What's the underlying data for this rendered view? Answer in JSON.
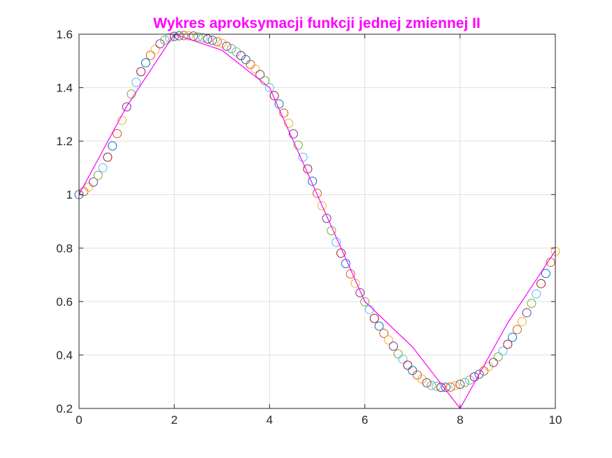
{
  "chart_data": {
    "type": "scatter",
    "title": "Wykres aproksymacji funkcji jednej zmiennej II",
    "title_color": "#ff00ff",
    "xlabel": "",
    "ylabel": "",
    "xlim": [
      0,
      10
    ],
    "ylim": [
      0.2,
      1.6
    ],
    "xticks": [
      "0",
      "2",
      "4",
      "6",
      "8",
      "10"
    ],
    "yticks": [
      "0.2",
      "0.4",
      "0.6",
      "0.8",
      "1",
      "1.2",
      "1.4",
      "1.6"
    ],
    "grid": true,
    "legend": "none",
    "marker_colors": [
      "#0072bd",
      "#d95319",
      "#edb120",
      "#7e2f8e",
      "#77ac30",
      "#4dbeee",
      "#a2142f"
    ],
    "series": [
      {
        "marker": "open-circle",
        "x": [
          0.0,
          0.1,
          0.2,
          0.3,
          0.4,
          0.5,
          0.6,
          0.7,
          0.8,
          0.9,
          1.0,
          1.1,
          1.2,
          1.3,
          1.4,
          1.5,
          1.6,
          1.7,
          1.8,
          1.9,
          2.0,
          2.1,
          2.2,
          2.3,
          2.4,
          2.5,
          2.6,
          2.7,
          2.8,
          2.9,
          3.0,
          3.1,
          3.2,
          3.3,
          3.4,
          3.5,
          3.6,
          3.7,
          3.8,
          3.9,
          4.0,
          4.1,
          4.2,
          4.3,
          4.4,
          4.5,
          4.6,
          4.7,
          4.8,
          4.9,
          5.0,
          5.1,
          5.2,
          5.3,
          5.4,
          5.5,
          5.6,
          5.7,
          5.8,
          5.9,
          6.0,
          6.1,
          6.2,
          6.3,
          6.4,
          6.5,
          6.6,
          6.7,
          6.8,
          6.9,
          7.0,
          7.1,
          7.2,
          7.3,
          7.4,
          7.5,
          7.6,
          7.7,
          7.8,
          7.9,
          8.0,
          8.1,
          8.2,
          8.3,
          8.4,
          8.5,
          8.6,
          8.7,
          8.8,
          8.9,
          9.0,
          9.1,
          9.2,
          9.3,
          9.4,
          9.5,
          9.6,
          9.7,
          9.8,
          9.9,
          10.0
        ],
        "y": [
          1.0,
          1.011,
          1.028,
          1.047,
          1.072,
          1.1,
          1.14,
          1.182,
          1.228,
          1.278,
          1.328,
          1.376,
          1.42,
          1.46,
          1.493,
          1.521,
          1.543,
          1.564,
          1.578,
          1.587,
          1.592,
          1.594,
          1.595,
          1.594,
          1.593,
          1.59,
          1.587,
          1.582,
          1.577,
          1.572,
          1.566,
          1.555,
          1.546,
          1.534,
          1.52,
          1.505,
          1.487,
          1.47,
          1.449,
          1.426,
          1.4,
          1.37,
          1.339,
          1.305,
          1.267,
          1.227,
          1.185,
          1.14,
          1.096,
          1.05,
          1.005,
          0.958,
          0.911,
          0.865,
          0.822,
          0.781,
          0.742,
          0.703,
          0.668,
          0.633,
          0.599,
          0.57,
          0.537,
          0.508,
          0.481,
          0.456,
          0.433,
          0.404,
          0.384,
          0.362,
          0.342,
          0.325,
          0.31,
          0.296,
          0.286,
          0.283,
          0.279,
          0.279,
          0.28,
          0.285,
          0.29,
          0.297,
          0.306,
          0.318,
          0.328,
          0.34,
          0.357,
          0.372,
          0.393,
          0.415,
          0.44,
          0.466,
          0.495,
          0.525,
          0.558,
          0.593,
          0.628,
          0.667,
          0.705,
          0.747,
          0.788
        ]
      },
      {
        "marker": "line",
        "color": "#ff00ff",
        "x": [
          0,
          1,
          2,
          3,
          4,
          5,
          6,
          7,
          8,
          9,
          10
        ],
        "y": [
          1.0,
          1.33,
          1.6,
          1.54,
          1.4,
          1.0,
          0.6,
          0.43,
          0.2,
          0.52,
          0.79
        ]
      }
    ]
  }
}
